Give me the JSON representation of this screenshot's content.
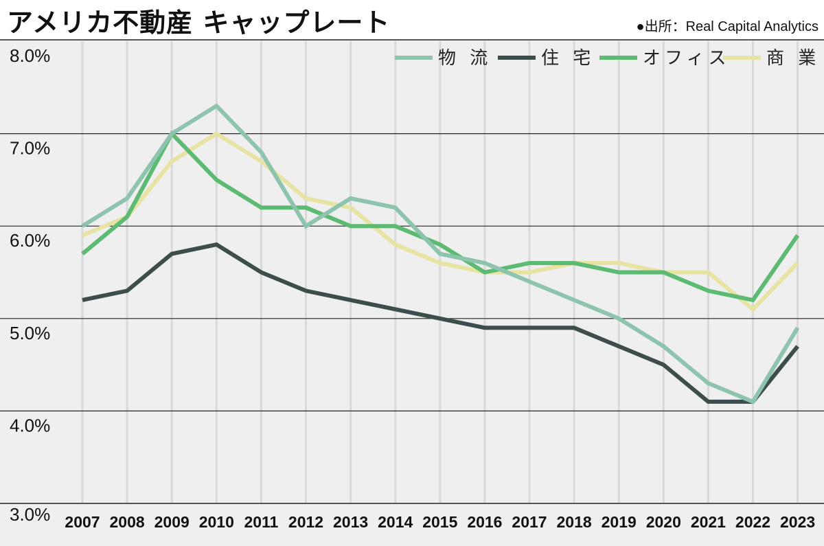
{
  "title": "アメリカ不動産 キャップレート",
  "source": "●出所：Real Capital Analytics",
  "chart_data": {
    "type": "line",
    "title": "アメリカ不動産 キャップレート",
    "xlabel": "",
    "ylabel": "",
    "categories": [
      "2007",
      "2008",
      "2009",
      "2010",
      "2011",
      "2012",
      "2013",
      "2014",
      "2015",
      "2016",
      "2017",
      "2018",
      "2019",
      "2020",
      "2021",
      "2022",
      "2023"
    ],
    "y_ticks": [
      "3.0%",
      "4.0%",
      "5.0%",
      "6.0%",
      "7.0%",
      "8.0%"
    ],
    "ylim": [
      3.0,
      8.0
    ],
    "grid": "horizontal",
    "legend_position": "top-right",
    "series": [
      {
        "name": "商 業",
        "color": "#e6e3a3",
        "values": [
          5.9,
          6.1,
          6.7,
          7.0,
          6.7,
          6.3,
          6.2,
          5.8,
          5.6,
          5.5,
          5.5,
          5.6,
          5.6,
          5.5,
          5.5,
          5.1,
          5.6
        ]
      },
      {
        "name": "オフィス",
        "color": "#5cba72",
        "values": [
          5.7,
          6.1,
          7.0,
          6.5,
          6.2,
          6.2,
          6.0,
          6.0,
          5.8,
          5.5,
          5.6,
          5.6,
          5.5,
          5.5,
          5.3,
          5.2,
          5.9
        ]
      },
      {
        "name": "住 宅",
        "color": "#3d4d4b",
        "values": [
          5.2,
          5.3,
          5.7,
          5.8,
          5.5,
          5.3,
          5.2,
          5.1,
          5.0,
          4.9,
          4.9,
          4.9,
          4.7,
          4.5,
          4.1,
          4.1,
          4.7
        ]
      },
      {
        "name": "物 流",
        "color": "#8ec4ad",
        "values": [
          6.0,
          6.3,
          7.0,
          7.3,
          6.8,
          6.0,
          6.3,
          6.2,
          5.7,
          5.6,
          5.4,
          5.2,
          5.0,
          4.7,
          4.3,
          4.1,
          4.9
        ]
      }
    ],
    "legend_order": [
      "物 流",
      "住 宅",
      "オフィス",
      "商 業"
    ]
  }
}
